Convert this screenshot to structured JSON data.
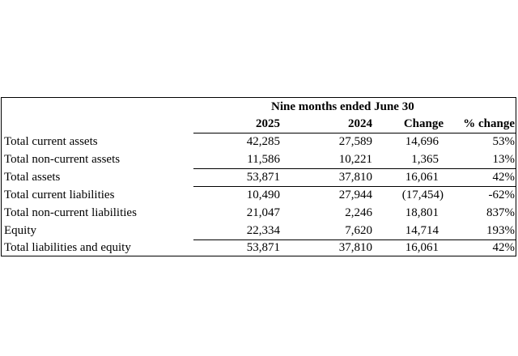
{
  "table": {
    "period_header": "Nine months ended June 30",
    "columns": [
      "2025",
      "2024",
      "Change",
      "% change"
    ],
    "rows": [
      {
        "label": "Total current assets",
        "values": [
          "42,285",
          "27,589",
          "14,696",
          "53%"
        ]
      },
      {
        "label": "Total non-current assets",
        "values": [
          "11,586",
          "10,221",
          "1,365",
          "13%"
        ]
      },
      {
        "label": "Total assets",
        "values": [
          "53,871",
          "37,810",
          "16,061",
          "42%"
        ]
      },
      {
        "label": "Total current liabilities",
        "values": [
          "10,490",
          "27,944",
          "(17,454)",
          "-62%"
        ]
      },
      {
        "label": "Total non-current liabilities",
        "values": [
          "21,047",
          "2,246",
          "18,801",
          "837%"
        ]
      },
      {
        "label": "Equity",
        "values": [
          "22,334",
          "7,620",
          "14,714",
          "193%"
        ]
      },
      {
        "label": "Total liabilities and equity",
        "values": [
          "53,871",
          "37,810",
          "16,061",
          "42%"
        ]
      }
    ]
  }
}
